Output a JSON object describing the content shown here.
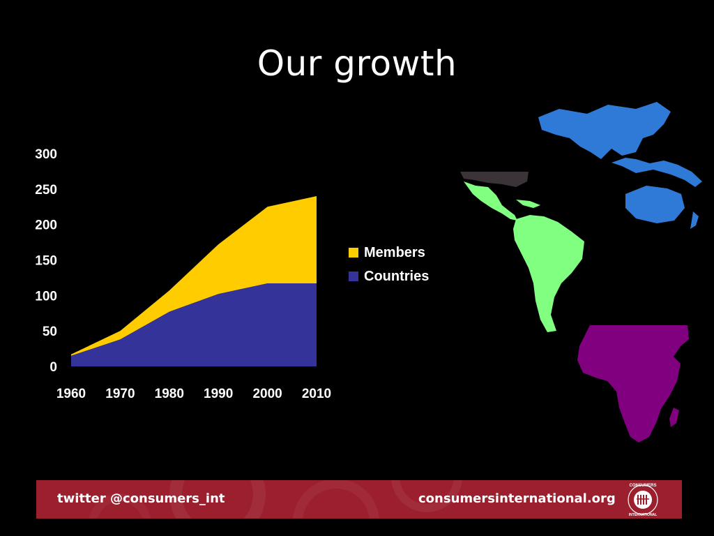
{
  "slide": {
    "title": "Our growth"
  },
  "chart_data": {
    "type": "area",
    "stacked": true,
    "x": [
      "1960",
      "1970",
      "1980",
      "1990",
      "2000",
      "2010"
    ],
    "series": [
      {
        "name": "Countries",
        "values": [
          15,
          38,
          77,
          102,
          117,
          117
        ],
        "color": "#333399"
      },
      {
        "name": "Members",
        "values": [
          2,
          12,
          30,
          70,
          108,
          123
        ],
        "color": "#ffcc00"
      }
    ],
    "ylim": [
      0,
      300
    ],
    "yticks": [
      "0",
      "50",
      "100",
      "150",
      "200",
      "250",
      "300"
    ],
    "grid": false,
    "legend_position": "right",
    "legend": [
      {
        "label": "Members",
        "color": "#ffcc00"
      },
      {
        "label": "Countries",
        "color": "#333399"
      }
    ]
  },
  "maps": {
    "asia_pacific_color": "#2e7ad6",
    "latin_america_color": "#80ff80",
    "africa_color": "#800080",
    "north_america_color": "#3a3438"
  },
  "footer": {
    "twitter": "twitter @consumers_int",
    "website": "consumersinternational.org",
    "logo_text": "CONSUMERS INTERNATIONAL",
    "background": "#9c1f2e"
  }
}
